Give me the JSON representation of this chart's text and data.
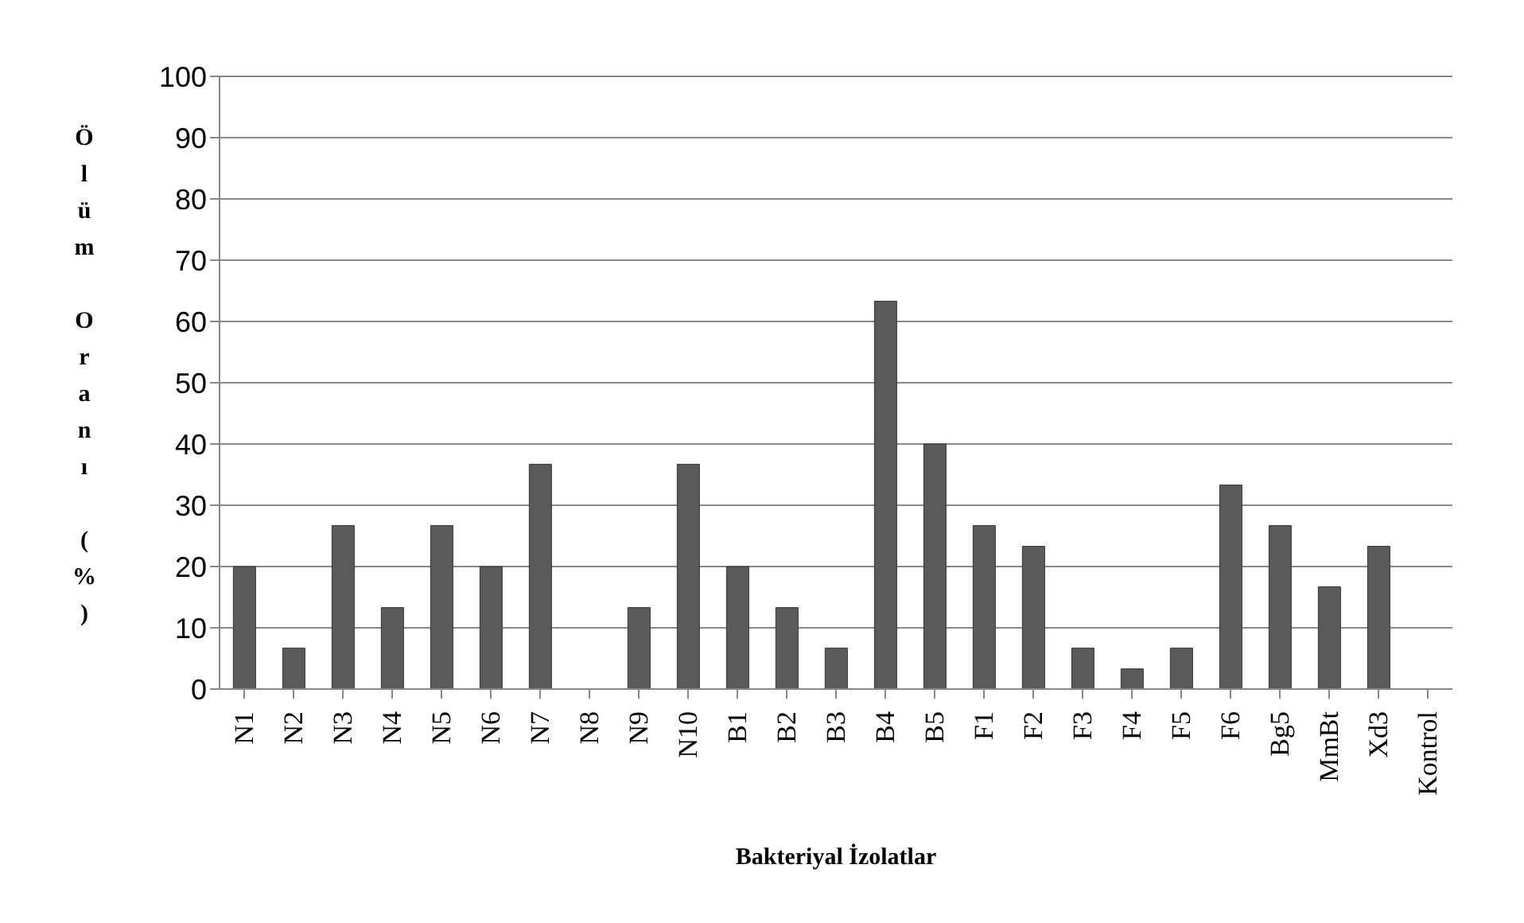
{
  "chart_data": {
    "type": "bar",
    "xlabel": "Bakteriyal İzolatlar",
    "ylabel": "Ölüm Oranı (%)",
    "categories": [
      "N1",
      "N2",
      "N3",
      "N4",
      "N5",
      "N6",
      "N7",
      "N8",
      "N9",
      "N10",
      "B1",
      "B2",
      "B3",
      "B4",
      "B5",
      "F1",
      "F2",
      "F3",
      "F4",
      "F5",
      "F6",
      "Bg5",
      "MmBt",
      "Xd3",
      "Kontrol"
    ],
    "values": [
      20,
      6.7,
      26.7,
      13.3,
      26.7,
      20,
      36.7,
      0,
      13.3,
      36.7,
      20,
      13.3,
      6.7,
      63.3,
      40,
      26.7,
      23.3,
      6.7,
      3.3,
      6.7,
      33.3,
      26.7,
      16.7,
      23.3,
      0
    ],
    "color": "#5a5a5a",
    "ylim": [
      0,
      100
    ],
    "yticks": [
      0,
      10,
      20,
      30,
      40,
      50,
      60,
      70,
      80,
      90,
      100
    ],
    "grid": "y"
  }
}
